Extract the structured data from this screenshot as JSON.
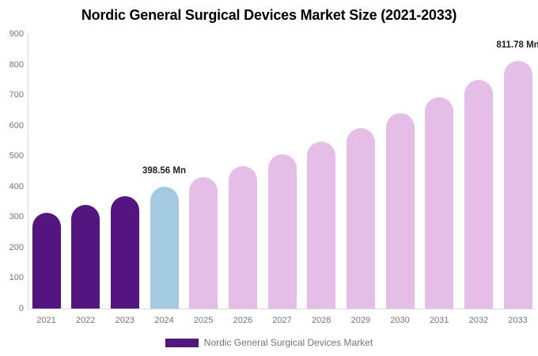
{
  "title": "Nordic General Surgical Devices Market Size (2021-2033)",
  "chart_data": {
    "type": "bar",
    "title": "Nordic General Surgical Devices Market Size (2021-2033)",
    "categories": [
      "2021",
      "2022",
      "2023",
      "2024",
      "2025",
      "2026",
      "2027",
      "2028",
      "2029",
      "2030",
      "2031",
      "2032",
      "2033"
    ],
    "values": [
      314,
      340,
      368,
      398.56,
      431,
      467,
      505,
      547,
      592,
      640,
      693,
      750,
      811.78
    ],
    "unit": "Mn",
    "bar_colors": [
      "#53157F",
      "#53157F",
      "#53157F",
      "#A3CADF",
      "#E4BEE7",
      "#E4BEE7",
      "#E4BEE7",
      "#E4BEE7",
      "#E4BEE7",
      "#E4BEE7",
      "#E4BEE7",
      "#E4BEE7",
      "#E4BEE7"
    ],
    "annotations": [
      {
        "category": "2024",
        "text": "398.56 Mn"
      },
      {
        "category": "2033",
        "text": "811.78 Mn"
      }
    ],
    "xlabel": "",
    "ylabel": "",
    "ylim": [
      0,
      900
    ],
    "yticks": [
      0,
      100,
      200,
      300,
      400,
      500,
      600,
      700,
      800,
      900
    ],
    "grid": false,
    "legend_position": "bottom"
  },
  "legend": {
    "entries": [
      {
        "label": "Nordic General Surgical Devices Market",
        "color": "#53157F"
      }
    ]
  },
  "colors": {
    "historical_bar": "#53157F",
    "base_year_bar": "#A3CADF",
    "forecast_bar": "#E4BEE7",
    "axis_line": "#d9d9d9",
    "tick_text": "#757575",
    "annotation_text": "#1f1f1f",
    "title_text": "#000000"
  }
}
